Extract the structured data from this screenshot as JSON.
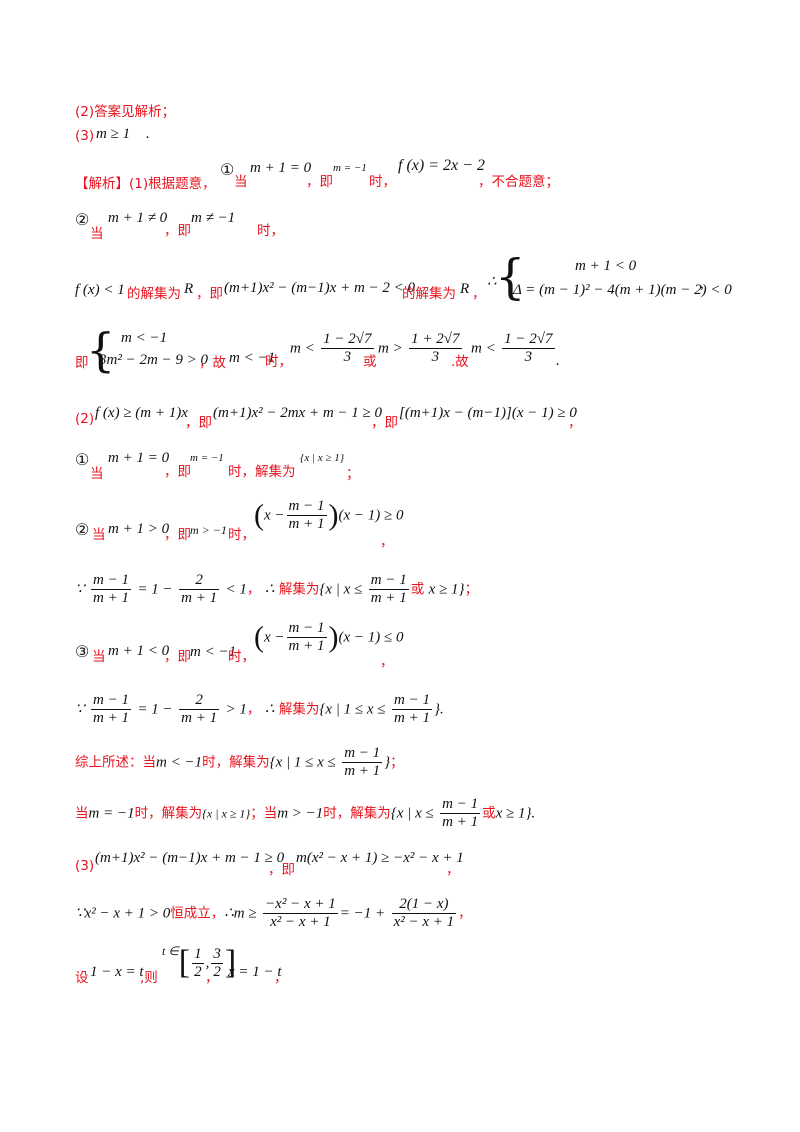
{
  "answers": {
    "a2": "(2)答案见解析；",
    "a3_prefix": "(3)",
    "a3_expr": "m ≥ 1",
    "a3_suffix": "."
  },
  "p1": {
    "head": "【解析】(1)根据题意，",
    "case1_num": "①",
    "case1_when": "当",
    "case1_cond": "m + 1 = 0",
    "ji": "，即",
    "case1_m": "m = −1",
    "case1_shi": "时，",
    "case1_f": "f (x) = 2x − 2",
    "case1_tail": "，不合题意；",
    "case2_num": "②",
    "case2_when": "当",
    "case2_cond": "m + 1 ≠ 0",
    "case2_ji": "，即",
    "case2_m": "m ≠ −1",
    "case2_shi": "时，",
    "l4_a": "f (x) < 1",
    "l4_b": "的解集为",
    "l4_R": "R",
    "l4_c": "，即",
    "l4_d": "(m+1)x² − (m−1)x + m − 2 < 0",
    "l4_e": "的解集为",
    "l4_R2": "R",
    "l4_f": "，",
    "therefore": "∴",
    "sys1_top": "m + 1 < 0",
    "sys1_bot": "Δ = (m − 1)² − 4(m + 1)(m − 2) < 0",
    "sys1_tail": ",",
    "l5_ji": "即",
    "sys2_top": "m < −1",
    "sys2_bot": "3m² − 2m − 9 > 0",
    "l5_a": "，故",
    "l5_m": "m < −1",
    "l5_shi": "时，",
    "l5_ineq1": "m <",
    "l5_f1_num": "1 − 2√7",
    "l5_f1_den": "3",
    "l5_or": "或",
    "l5_ineq2": "m >",
    "l5_f2_num": "1 + 2√7",
    "l5_f2_den": "3",
    "l5_gu": ".故",
    "l5_ineq3": "m <",
    "l5_f3_num": "1 − 2√7",
    "l5_f3_den": "3",
    "l5_end": "."
  },
  "p2": {
    "label": "(2)",
    "a": "f (x) ≥ (m + 1)x",
    "ji1": "，即",
    "b": "(m+1)x² − 2mx + m − 1 ≥ 0",
    "ji2": "，即",
    "c": "[(m+1)x − (m−1)](x − 1) ≥ 0",
    "tail": "，",
    "c1_num": "①",
    "c1_when": "当",
    "c1_cond": "m + 1 = 0",
    "c1_ji": "，即",
    "c1_m": "m = −1",
    "c1_shi": "时，解集为",
    "c1_set": "{x | x ≥ 1}",
    "c1_end": "；",
    "c2_num": "②",
    "c2_when": "当",
    "c2_cond": "m + 1 > 0",
    "c2_ji": "，即",
    "c2_m": "m > −1",
    "c2_shi": "时，",
    "c2_lhs": "x −",
    "c2_num_f": "m − 1",
    "c2_den_f": "m + 1",
    "c2_rhs": "(x − 1) ≥ 0",
    "c2_end": "，",
    "b2_because": "∵",
    "b2_f1n": "m − 1",
    "b2_f1d": "m + 1",
    "b2_eq": "= 1 −",
    "b2_f2n": "2",
    "b2_f2d": "m + 1",
    "b2_lt": "< 1",
    "b2_comma": "，",
    "b2_therefore": "∴",
    "b2_sol": "解集为",
    "b2_set_a": "{x | x ≤",
    "b2_sf_n": "m − 1",
    "b2_sf_d": "m + 1",
    "b2_or": "或",
    "b2_set_b": "x ≥ 1}",
    "b2_end": "；",
    "c3_num": "③",
    "c3_when": "当",
    "c3_cond": "m + 1 < 0",
    "c3_ji": "，即",
    "c3_m": "m < −1",
    "c3_shi": "时，",
    "c3_lhs": "x −",
    "c3_num_f": "m − 1",
    "c3_den_f": "m + 1",
    "c3_rhs": "(x − 1) ≤ 0",
    "c3_end": "，",
    "b3_because": "∵",
    "b3_f1n": "m − 1",
    "b3_f1d": "m + 1",
    "b3_eq": "= 1 −",
    "b3_f2n": "2",
    "b3_f2d": "m + 1",
    "b3_gt": "> 1",
    "b3_comma": "，",
    "b3_therefore": "∴",
    "b3_sol": "解集为",
    "b3_set_a": "{x | 1 ≤ x ≤",
    "b3_sf_n": "m − 1",
    "b3_sf_d": "m + 1",
    "b3_set_b": "}",
    "b3_end": ".",
    "sum_head": "综上所述：当",
    "sum_m1": "m < −1",
    "sum_shi1": "时，解集为",
    "sum_set1_a": "{x | 1 ≤ x ≤",
    "sum_set1_n": "m − 1",
    "sum_set1_d": "m + 1",
    "sum_set1_b": "}",
    "sum_end1": "；",
    "sum2_when": "当",
    "sum2_m": "m = −1",
    "sum2_shi": "时，解集为",
    "sum2_set": "{x | x ≥ 1}",
    "sum2_semi": "；当",
    "sum2_m2": "m > −1",
    "sum2_shi2": "时，解集为",
    "sum2_set_a": "{x | x ≤",
    "sum2_sf_n": "m − 1",
    "sum2_sf_d": "m + 1",
    "sum2_or": "或",
    "sum2_set_b": "x ≥ 1}",
    "sum2_end": "."
  },
  "p3": {
    "label": "(3)",
    "a": "(m+1)x² − (m−1)x + m − 1 ≥ 0",
    "ji": "，即",
    "b": "m(x² − x + 1) ≥ −x² − x + 1",
    "tail": "，",
    "l2_because": "∵",
    "l2_a": "x² − x + 1 > 0",
    "l2_hold": "恒成立，",
    "l2_therefore": "∴",
    "l2_m": "m ≥",
    "l2_f1n": "−x² − x + 1",
    "l2_f1d": "x² − x + 1",
    "l2_eq": "= −1 +",
    "l2_f2n": "2(1 − x)",
    "l2_f2d": "x² − x + 1",
    "l2_end": "，",
    "l3_she": "设",
    "l3_a": "1 − x = t",
    "l3_ze": ",则",
    "l3_t": "t ∈",
    "l3_in_n1": "1",
    "l3_in_d1": "2",
    "l3_in_n2": "3",
    "l3_in_d2": "2",
    "l3_comma": "，",
    "l3_x": "x = 1 − t",
    "l3_end": "，"
  }
}
